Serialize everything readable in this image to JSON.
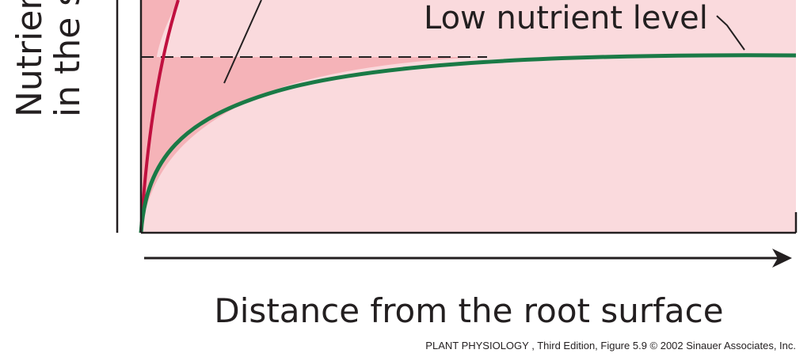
{
  "y_axis_label": {
    "line1": "Nutrien",
    "line2": "in the s"
  },
  "curve_label": "Low nutrient level",
  "x_axis_label": "Distance from the root surface",
  "credit": "PLANT PHYSIOLOGY , Third Edition, Figure 5.9  © 2002 Sinauer Associates, Inc."
}
